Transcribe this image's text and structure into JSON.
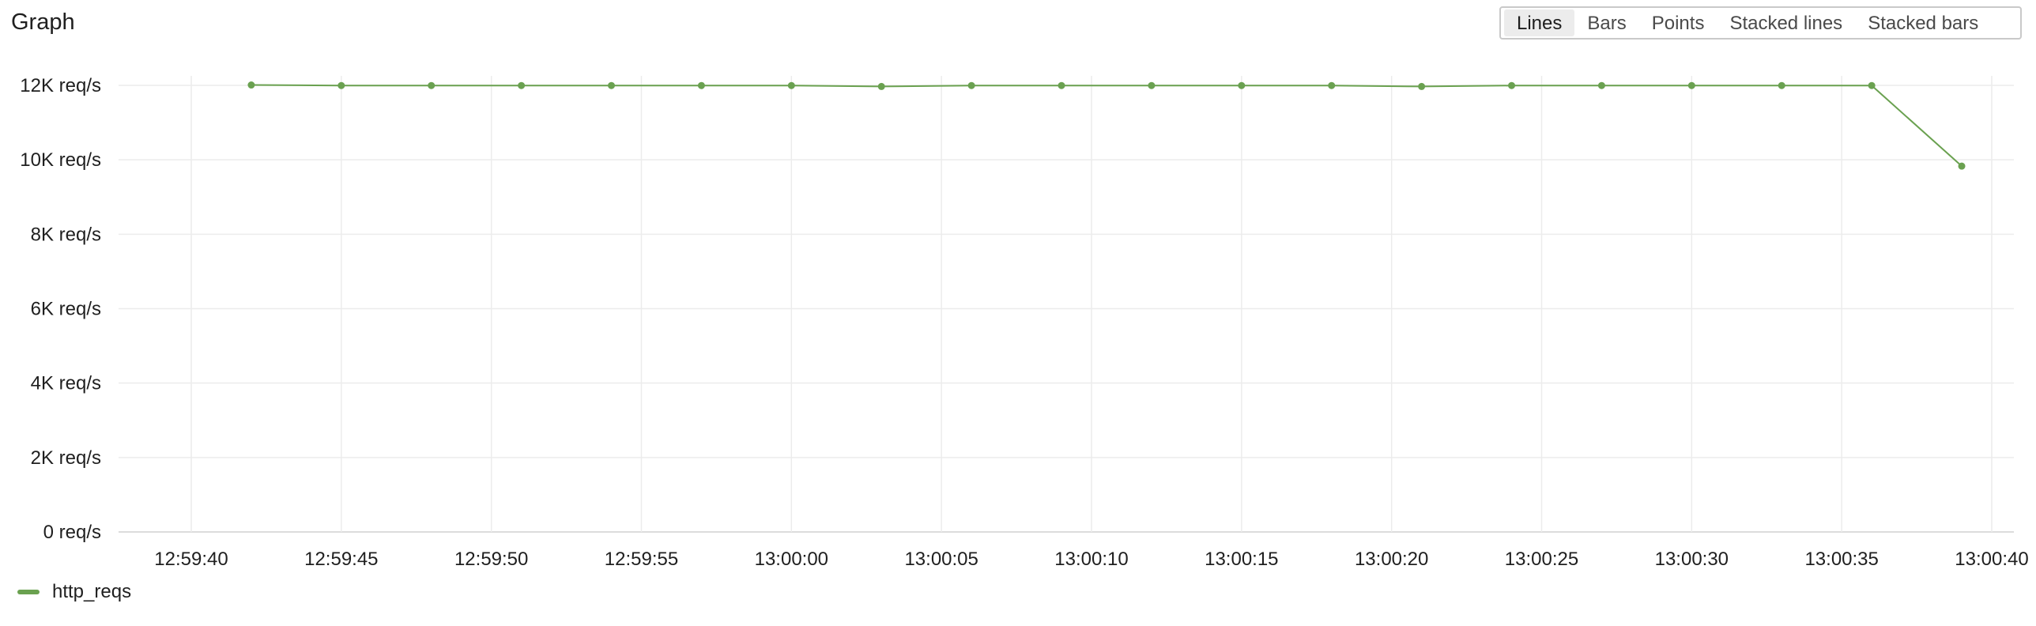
{
  "panel": {
    "title": "Graph"
  },
  "viz_modes": [
    {
      "label": "Lines",
      "active": true
    },
    {
      "label": "Bars",
      "active": false
    },
    {
      "label": "Points",
      "active": false
    },
    {
      "label": "Stacked lines",
      "active": false
    },
    {
      "label": "Stacked bars",
      "active": false
    }
  ],
  "colors": {
    "series": "#6aa150",
    "grid": "#ececec",
    "axis": "#d0d0d0"
  },
  "chart_data": {
    "type": "line",
    "title": "",
    "xlabel": "",
    "ylabel": "",
    "grid": true,
    "legend_position": "bottom-left",
    "x_ticks": [
      "12:59:40",
      "12:59:45",
      "12:59:50",
      "12:59:55",
      "13:00:00",
      "13:00:05",
      "13:00:10",
      "13:00:15",
      "13:00:20",
      "13:00:25",
      "13:00:30",
      "13:00:35",
      "13:00:40"
    ],
    "xlim": [
      "12:59:40",
      "13:00:40"
    ],
    "y_ticks": [
      {
        "value": 0,
        "label": "0 req/s"
      },
      {
        "value": 2000,
        "label": "2K req/s"
      },
      {
        "value": 4000,
        "label": "4K req/s"
      },
      {
        "value": 6000,
        "label": "6K req/s"
      },
      {
        "value": 8000,
        "label": "8K req/s"
      },
      {
        "value": 10000,
        "label": "10K req/s"
      },
      {
        "value": 12000,
        "label": "12K req/s"
      }
    ],
    "ylim": [
      0,
      12000
    ],
    "series": [
      {
        "name": "http_reqs",
        "points": [
          {
            "x": "12:59:42",
            "y": 12010
          },
          {
            "x": "12:59:45",
            "y": 11995
          },
          {
            "x": "12:59:48",
            "y": 11995
          },
          {
            "x": "12:59:51",
            "y": 11995
          },
          {
            "x": "12:59:54",
            "y": 11995
          },
          {
            "x": "12:59:57",
            "y": 11995
          },
          {
            "x": "13:00:00",
            "y": 11995
          },
          {
            "x": "13:00:03",
            "y": 11970
          },
          {
            "x": "13:00:06",
            "y": 11995
          },
          {
            "x": "13:00:09",
            "y": 11995
          },
          {
            "x": "13:00:12",
            "y": 11995
          },
          {
            "x": "13:00:15",
            "y": 11995
          },
          {
            "x": "13:00:18",
            "y": 11995
          },
          {
            "x": "13:00:21",
            "y": 11970
          },
          {
            "x": "13:00:24",
            "y": 11995
          },
          {
            "x": "13:00:27",
            "y": 11995
          },
          {
            "x": "13:00:30",
            "y": 11995
          },
          {
            "x": "13:00:33",
            "y": 11995
          },
          {
            "x": "13:00:36",
            "y": 11995
          },
          {
            "x": "13:00:39",
            "y": 9830
          }
        ]
      }
    ]
  }
}
